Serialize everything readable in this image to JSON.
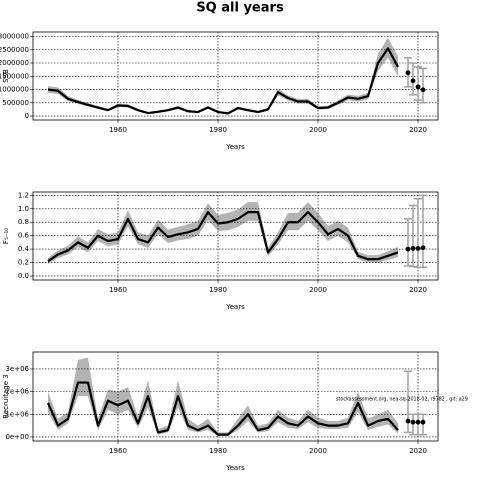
{
  "chart_data": [
    {
      "type": "line",
      "title": "SQ all years",
      "ylabel": "SSB",
      "xlabel": "Years",
      "color": "#000000",
      "band_color": "#b3b3b3",
      "grid": true,
      "xlim": [
        1943,
        2024
      ],
      "xticks": [
        1960,
        1980,
        2000,
        2020
      ],
      "ylim": [
        -150000,
        3170000
      ],
      "yticks": [
        0,
        500000,
        1000000,
        1500000,
        2000000,
        2500000,
        3000000
      ],
      "x": [
        1946,
        1948,
        1950,
        1952,
        1954,
        1956,
        1958,
        1960,
        1962,
        1964,
        1966,
        1968,
        1970,
        1972,
        1974,
        1976,
        1978,
        1980,
        1982,
        1984,
        1986,
        1988,
        1990,
        1992,
        1994,
        1996,
        1998,
        2000,
        2002,
        2004,
        2006,
        2008,
        2010,
        2012,
        2014,
        2016
      ],
      "values": [
        1000000,
        950000,
        650000,
        530000,
        420000,
        320000,
        220000,
        400000,
        380000,
        220000,
        110000,
        160000,
        220000,
        320000,
        180000,
        150000,
        320000,
        150000,
        100000,
        300000,
        220000,
        150000,
        250000,
        900000,
        680000,
        550000,
        550000,
        300000,
        320000,
        500000,
        700000,
        650000,
        750000,
        2000000,
        2550000,
        1850000
      ],
      "lower": [
        880000,
        830000,
        560000,
        460000,
        360000,
        270000,
        180000,
        340000,
        320000,
        180000,
        80000,
        120000,
        180000,
        270000,
        140000,
        110000,
        270000,
        110000,
        70000,
        250000,
        180000,
        110000,
        200000,
        780000,
        590000,
        470000,
        470000,
        240000,
        260000,
        420000,
        600000,
        550000,
        630000,
        1700000,
        2200000,
        1500000
      ],
      "upper": [
        1130000,
        1080000,
        750000,
        610000,
        490000,
        380000,
        270000,
        470000,
        450000,
        270000,
        150000,
        210000,
        270000,
        380000,
        230000,
        200000,
        380000,
        200000,
        140000,
        360000,
        270000,
        200000,
        310000,
        1030000,
        780000,
        640000,
        640000,
        370000,
        390000,
        590000,
        810000,
        760000,
        880000,
        2350000,
        2950000,
        2250000
      ],
      "forecast_x": [
        2018,
        2019,
        2020,
        2021
      ],
      "forecast_values": [
        1630000,
        1330000,
        1100000,
        990000
      ],
      "forecast_lower": [
        1100000,
        800000,
        600000,
        500000
      ],
      "forecast_upper": [
        2200000,
        2000000,
        1850000,
        1800000
      ]
    },
    {
      "type": "line",
      "ylabel": "F₅₋₁₀",
      "xlabel": "Years",
      "color": "#000000",
      "band_color": "#b3b3b3",
      "grid": true,
      "xlim": [
        1943,
        2024
      ],
      "xticks": [
        1960,
        1980,
        2000,
        2020
      ],
      "ylim": [
        -0.06,
        1.25
      ],
      "yticks": [
        {
          "value": 0,
          "label": "0.0"
        },
        0.2,
        0.4,
        0.6,
        0.8,
        {
          "value": 1,
          "label": "1.0"
        },
        1.2
      ],
      "x": [
        1946,
        1948,
        1950,
        1952,
        1954,
        1956,
        1958,
        1960,
        1962,
        1964,
        1966,
        1968,
        1970,
        1972,
        1974,
        1976,
        1978,
        1980,
        1982,
        1984,
        1986,
        1988,
        1990,
        1992,
        1994,
        1996,
        1998,
        2000,
        2002,
        2004,
        2006,
        2008,
        2010,
        2012,
        2014,
        2016
      ],
      "values": [
        0.22,
        0.32,
        0.38,
        0.5,
        0.42,
        0.6,
        0.52,
        0.55,
        0.85,
        0.55,
        0.5,
        0.72,
        0.58,
        0.62,
        0.65,
        0.7,
        0.95,
        0.78,
        0.8,
        0.85,
        0.95,
        0.95,
        0.35,
        0.55,
        0.8,
        0.8,
        0.95,
        0.8,
        0.62,
        0.7,
        0.6,
        0.3,
        0.25,
        0.25,
        0.3,
        0.35
      ],
      "lower": [
        0.18,
        0.27,
        0.32,
        0.43,
        0.35,
        0.52,
        0.44,
        0.47,
        0.74,
        0.47,
        0.42,
        0.62,
        0.49,
        0.53,
        0.55,
        0.6,
        0.83,
        0.67,
        0.68,
        0.73,
        0.82,
        0.82,
        0.29,
        0.47,
        0.68,
        0.68,
        0.82,
        0.68,
        0.52,
        0.6,
        0.5,
        0.25,
        0.2,
        0.2,
        0.24,
        0.28
      ],
      "upper": [
        0.27,
        0.38,
        0.45,
        0.59,
        0.5,
        0.7,
        0.62,
        0.65,
        0.98,
        0.65,
        0.6,
        0.84,
        0.69,
        0.73,
        0.77,
        0.82,
        1.08,
        0.91,
        0.94,
        0.99,
        1.1,
        1.1,
        0.42,
        0.65,
        0.94,
        0.94,
        1.1,
        0.94,
        0.74,
        0.82,
        0.72,
        0.36,
        0.31,
        0.31,
        0.37,
        0.43
      ],
      "forecast_x": [
        2018,
        2019,
        2020,
        2021
      ],
      "forecast_values": [
        0.4,
        0.41,
        0.41,
        0.42
      ],
      "forecast_lower": [
        0.15,
        0.14,
        0.13,
        0.13
      ],
      "forecast_upper": [
        0.85,
        1.05,
        1.15,
        1.2
      ]
    },
    {
      "type": "line",
      "ylabel": "Recruitage 3",
      "xlabel": "Years",
      "color": "#000000",
      "band_color": "#b3b3b3",
      "grid": true,
      "annotation": "stockassessment.org, nea-sq-2018-02, r9782 , git: a29",
      "xlim": [
        1943,
        2024
      ],
      "xticks": [
        1960,
        1980,
        2000,
        2020
      ],
      "ylim": [
        -180000,
        3750000
      ],
      "yticks": [
        {
          "value": 0,
          "label": "0e+00"
        },
        {
          "value": 1000000,
          "label": "1e+06"
        },
        {
          "value": 2000000,
          "label": "2e+06"
        },
        {
          "value": 3000000,
          "label": "3e+06"
        }
      ],
      "x": [
        1946,
        1948,
        1950,
        1952,
        1954,
        1956,
        1958,
        1960,
        1962,
        1964,
        1966,
        1968,
        1970,
        1972,
        1974,
        1976,
        1978,
        1980,
        1982,
        1984,
        1986,
        1988,
        1990,
        1992,
        1994,
        1996,
        1998,
        2000,
        2002,
        2004,
        2006,
        2008,
        2010,
        2012,
        2014,
        2016
      ],
      "values": [
        1500000,
        500000,
        800000,
        2400000,
        2400000,
        500000,
        1600000,
        1400000,
        1600000,
        600000,
        1800000,
        200000,
        300000,
        1800000,
        500000,
        300000,
        500000,
        100000,
        100000,
        500000,
        1000000,
        300000,
        400000,
        900000,
        600000,
        500000,
        900000,
        600000,
        500000,
        500000,
        600000,
        1500000,
        500000,
        700000,
        800000,
        300000
      ],
      "lower": [
        1100000,
        300000,
        600000,
        1800000,
        1800000,
        300000,
        1200000,
        1000000,
        1200000,
        400000,
        1300000,
        100000,
        200000,
        1300000,
        300000,
        200000,
        300000,
        50000,
        50000,
        300000,
        700000,
        200000,
        250000,
        650000,
        400000,
        350000,
        650000,
        400000,
        350000,
        350000,
        400000,
        1100000,
        300000,
        450000,
        550000,
        150000
      ],
      "upper": [
        2000000,
        800000,
        1100000,
        3400000,
        3500000,
        800000,
        2100000,
        2000000,
        2200000,
        900000,
        2500000,
        350000,
        500000,
        2500000,
        800000,
        500000,
        800000,
        200000,
        200000,
        800000,
        1400000,
        500000,
        600000,
        1200000,
        850000,
        700000,
        1200000,
        850000,
        700000,
        700000,
        850000,
        2000000,
        800000,
        1000000,
        1200000,
        600000
      ],
      "forecast_x": [
        2018,
        2019,
        2020,
        2021
      ],
      "forecast_values": [
        700000,
        650000,
        650000,
        650000
      ],
      "forecast_lower": [
        200000,
        100000,
        100000,
        100000
      ],
      "forecast_upper": [
        2900000,
        1000000,
        1000000,
        1000000
      ]
    }
  ]
}
